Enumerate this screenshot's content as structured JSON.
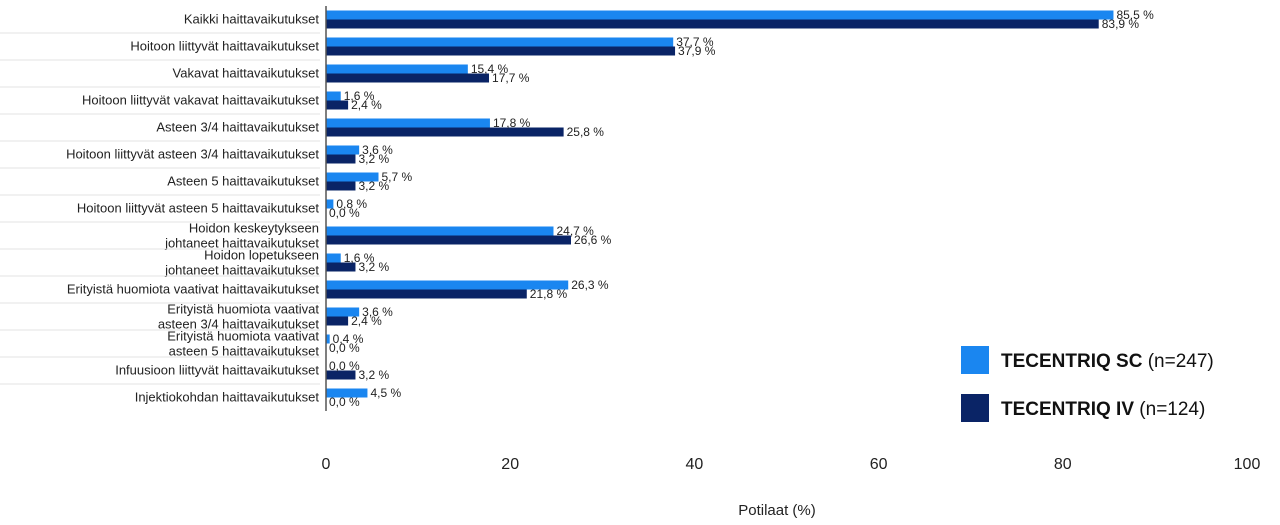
{
  "chart_data": {
    "type": "bar",
    "orientation": "horizontal",
    "categories": [
      [
        "Kaikki haittavaikutukset"
      ],
      [
        "Hoitoon liittyvät  haittavaikutukset"
      ],
      [
        "Vakavat haittavaikutukset"
      ],
      [
        "Hoitoon liittyvät vakavat haittavaikutukset"
      ],
      [
        "Asteen 3/4 haittavaikutukset"
      ],
      [
        "Hoitoon liittyvät asteen 3/4 haittavaikutukset"
      ],
      [
        "Asteen 5 haittavaikutukset"
      ],
      [
        "Hoitoon liittyvät asteen 5 haittavaikutukset"
      ],
      [
        "Hoidon keskeytykseen",
        "johtaneet haittavaikutukset"
      ],
      [
        "Hoidon lopetukseen",
        "johtaneet haittavaikutukset"
      ],
      [
        "Erityistä huomiota vaativat haittavaikutukset"
      ],
      [
        "Erityistä huomiota vaativat",
        "asteen 3/4 haittavaikutukset"
      ],
      [
        "Erityistä huomiota vaativat",
        "asteen 5 haittavaikutukset"
      ],
      [
        "Infuusioon liittyvät haittavaikutukset"
      ],
      [
        "Injektiokohdan haittavaikutukset"
      ]
    ],
    "series": [
      {
        "name": "TECENTRIQ SC",
        "name_suffix": "(n=247)",
        "color": "#1a86f0",
        "values": [
          85.5,
          37.7,
          15.4,
          1.6,
          17.8,
          3.6,
          5.7,
          0.8,
          24.7,
          1.6,
          26.3,
          3.6,
          0.4,
          null,
          4.5
        ],
        "labels": [
          "85,5 %",
          "37,7 %",
          "15,4 %",
          "1,6 %",
          "17,8 %",
          "3,6 %",
          "5,7 %",
          "0,8 %",
          "24,7 %",
          "1,6 %",
          "26,3 %",
          "3,6 %",
          "0,4 %",
          "0,0 %",
          "4,5 %"
        ]
      },
      {
        "name": "TECENTRIQ IV",
        "name_suffix": "(n=124)",
        "color": "#0a2466",
        "values": [
          83.9,
          37.9,
          17.7,
          2.4,
          25.8,
          3.2,
          3.2,
          0.0,
          26.6,
          3.2,
          21.8,
          2.4,
          0.0,
          3.2,
          0.0
        ],
        "labels": [
          "83,9 %",
          "37,9 %",
          "17,7 %",
          "2,4 %",
          "25,8 %",
          "3,2 %",
          "3,2 %",
          "0,0 %",
          "26,6 %",
          "3,2 %",
          "21,8 %",
          "2,4 %",
          "0,0 %",
          "3,2 %",
          "0,0 %"
        ]
      }
    ],
    "xlabel": "Potilaat (%)",
    "xlim": [
      0,
      100
    ],
    "xticks": [
      "0",
      "20",
      "40",
      "60",
      "80",
      "100"
    ],
    "legend_position": "bottom-right",
    "grid": false
  }
}
